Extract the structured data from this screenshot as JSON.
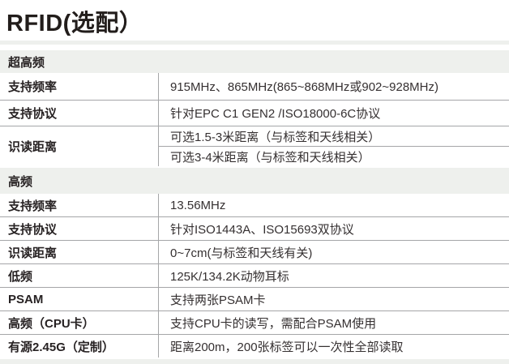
{
  "title": "RFID(选配）",
  "colors": {
    "section_bar_bg": "#eef0ed",
    "grid_line": "#a5a6a8",
    "text": "#272223"
  },
  "sections": [
    {
      "header": "超高频",
      "rows": [
        {
          "label": "支持频率",
          "values": [
            "915MHz、865MHz(865~868MHz或902~928MHz)"
          ]
        },
        {
          "label": "支持协议",
          "values": [
            "针对EPC C1 GEN2 /ISO18000-6C协议"
          ]
        },
        {
          "label": "识读距离",
          "values": [
            "可选1.5-3米距离（与标签和天线相关）",
            "可选3-4米距离（与标签和天线相关）"
          ]
        }
      ]
    },
    {
      "header": "高频",
      "rows": [
        {
          "label": "支持频率",
          "values": [
            "13.56MHz"
          ]
        },
        {
          "label": "支持协议",
          "values": [
            "针对ISO1443A、ISO15693双协议"
          ]
        },
        {
          "label": "识读距离",
          "values": [
            "0~7cm(与标签和天线有关)"
          ]
        },
        {
          "label": "低频",
          "values": [
            "125K/134.2K动物耳标"
          ]
        },
        {
          "label": "PSAM",
          "values": [
            "支持两张PSAM卡"
          ]
        },
        {
          "label": "高频（CPU卡）",
          "values": [
            "支持CPU卡的读写，需配合PSAM使用"
          ]
        },
        {
          "label": "有源2.45G（定制）",
          "values": [
            "距离200m，200张标签可以一次性全部读取"
          ]
        }
      ]
    }
  ]
}
